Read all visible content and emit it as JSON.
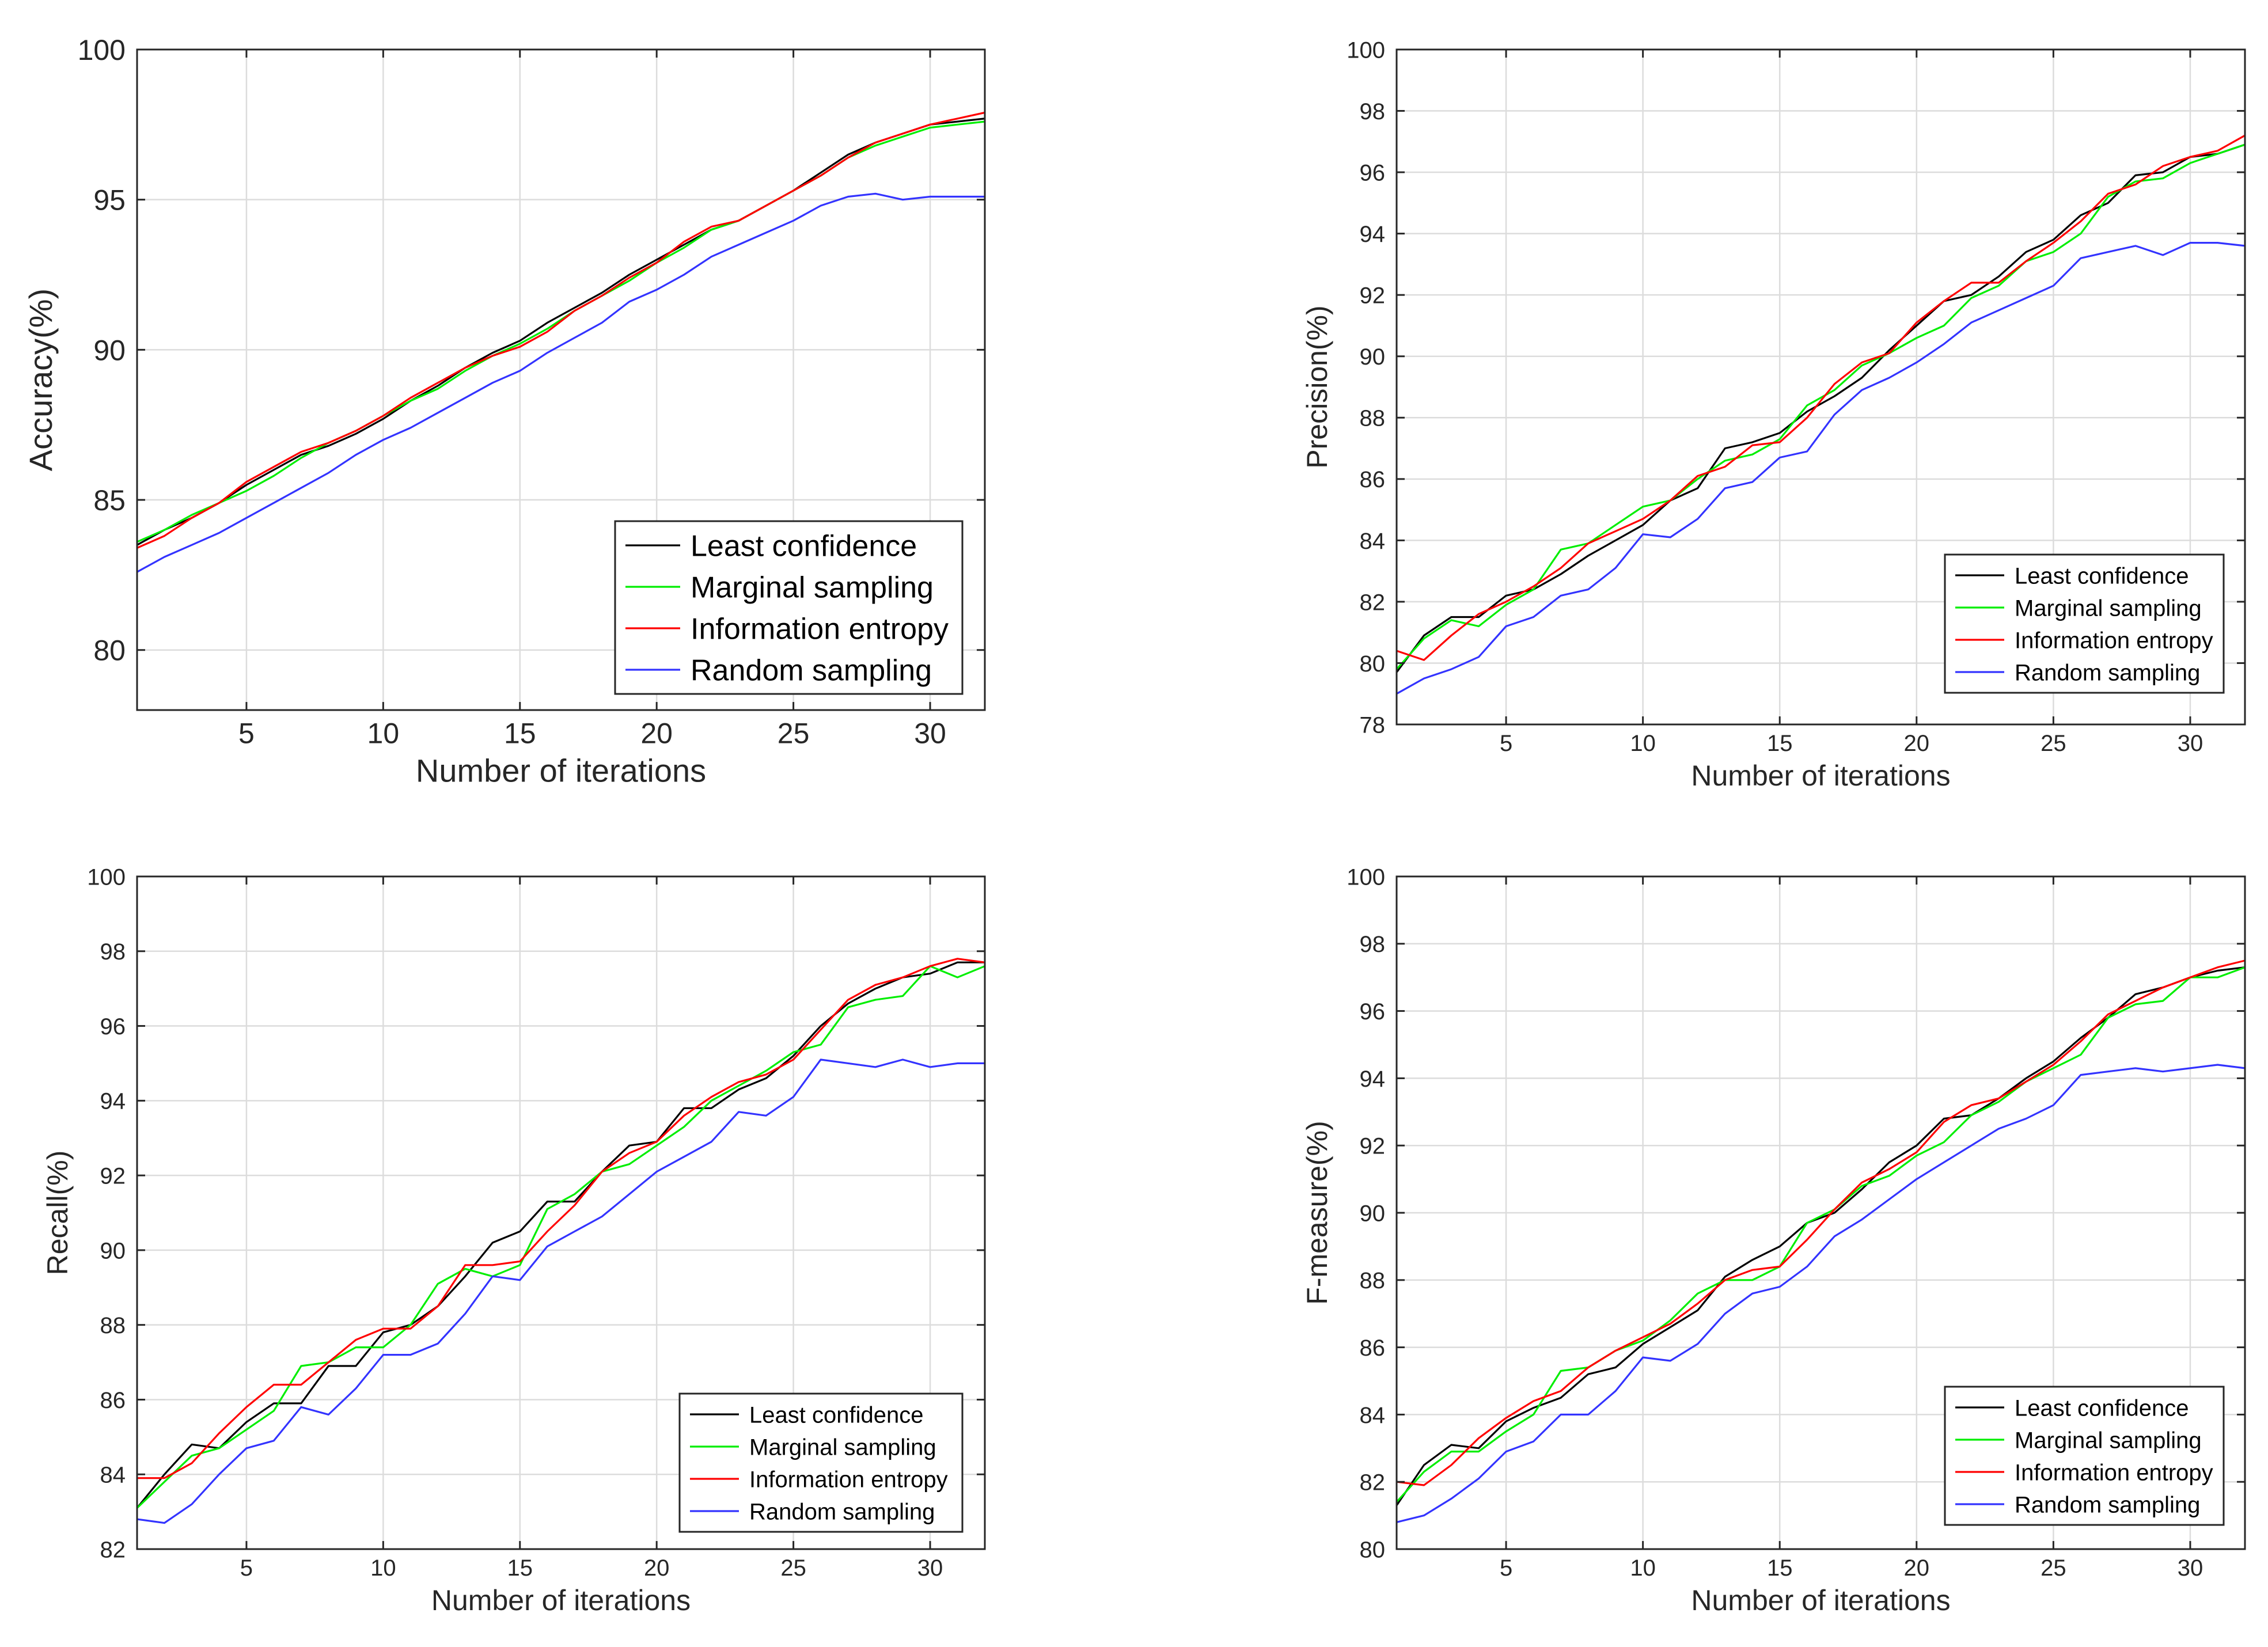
{
  "chart_data": [
    {
      "type": "line",
      "title": "",
      "xlabel": "Number of iterations",
      "ylabel": "Accuracy(%)",
      "xlim": [
        1,
        32
      ],
      "ylim": [
        78,
        100
      ],
      "xticks": [
        5,
        10,
        15,
        20,
        25,
        30
      ],
      "yticks": [
        80,
        85,
        90,
        95,
        100
      ],
      "grid": true,
      "legend_position": "bottom-right",
      "x": [
        1,
        2,
        3,
        4,
        5,
        6,
        7,
        8,
        9,
        10,
        11,
        12,
        13,
        14,
        15,
        16,
        17,
        18,
        19,
        20,
        21,
        22,
        23,
        24,
        25,
        26,
        27,
        28,
        29,
        30,
        31,
        32
      ],
      "series": [
        {
          "name": "Least confidence",
          "color": "#000000",
          "values": [
            83.5,
            84.0,
            84.4,
            84.9,
            85.5,
            86.0,
            86.5,
            86.8,
            87.2,
            87.7,
            88.3,
            88.8,
            89.4,
            89.9,
            90.3,
            90.9,
            91.4,
            91.9,
            92.5,
            93.0,
            93.5,
            94.0,
            94.3,
            94.8,
            95.3,
            95.9,
            96.5,
            96.9,
            97.2,
            97.5,
            97.6,
            97.7
          ]
        },
        {
          "name": "Marginal sampling",
          "color": "#00ee00",
          "values": [
            83.6,
            84.0,
            84.5,
            84.9,
            85.3,
            85.8,
            86.4,
            86.9,
            87.3,
            87.8,
            88.3,
            88.7,
            89.3,
            89.8,
            90.2,
            90.7,
            91.3,
            91.8,
            92.3,
            92.9,
            93.4,
            94.0,
            94.3,
            94.8,
            95.3,
            95.8,
            96.4,
            96.8,
            97.1,
            97.4,
            97.5,
            97.6
          ]
        },
        {
          "name": "Information entropy",
          "color": "#ff0000",
          "values": [
            83.4,
            83.8,
            84.4,
            84.9,
            85.6,
            86.1,
            86.6,
            86.9,
            87.3,
            87.8,
            88.4,
            88.9,
            89.4,
            89.8,
            90.1,
            90.6,
            91.3,
            91.8,
            92.4,
            92.9,
            93.6,
            94.1,
            94.3,
            94.8,
            95.3,
            95.8,
            96.4,
            96.9,
            97.2,
            97.5,
            97.7,
            97.9
          ]
        },
        {
          "name": "Random sampling",
          "color": "#3333ff",
          "values": [
            82.6,
            83.1,
            83.5,
            83.9,
            84.4,
            84.9,
            85.4,
            85.9,
            86.5,
            87.0,
            87.4,
            87.9,
            88.4,
            88.9,
            89.3,
            89.9,
            90.4,
            90.9,
            91.6,
            92.0,
            92.5,
            93.1,
            93.5,
            93.9,
            94.3,
            94.8,
            95.1,
            95.2,
            95.0,
            95.1,
            95.1,
            95.1
          ]
        }
      ]
    },
    {
      "type": "line",
      "title": "",
      "xlabel": "Number of iterations",
      "ylabel": "Precision(%)",
      "xlim": [
        1,
        32
      ],
      "ylim": [
        78,
        100
      ],
      "xticks": [
        5,
        10,
        15,
        20,
        25,
        30
      ],
      "yticks": [
        78,
        80,
        82,
        84,
        86,
        88,
        90,
        92,
        94,
        96,
        98,
        100
      ],
      "grid": true,
      "legend_position": "bottom-right",
      "x": [
        1,
        2,
        3,
        4,
        5,
        6,
        7,
        8,
        9,
        10,
        11,
        12,
        13,
        14,
        15,
        16,
        17,
        18,
        19,
        20,
        21,
        22,
        23,
        24,
        25,
        26,
        27,
        28,
        29,
        30,
        31,
        32
      ],
      "series": [
        {
          "name": "Least confidence",
          "color": "#000000",
          "values": [
            79.7,
            80.9,
            81.5,
            81.5,
            82.2,
            82.4,
            82.9,
            83.5,
            84.0,
            84.5,
            85.3,
            85.7,
            87.0,
            87.2,
            87.5,
            88.2,
            88.7,
            89.3,
            90.2,
            91.0,
            91.8,
            92.0,
            92.6,
            93.4,
            93.8,
            94.6,
            95.0,
            95.9,
            96.0,
            96.5,
            96.6,
            96.9
          ]
        },
        {
          "name": "Marginal sampling",
          "color": "#00ee00",
          "values": [
            79.8,
            80.8,
            81.4,
            81.2,
            81.9,
            82.4,
            83.7,
            83.9,
            84.5,
            85.1,
            85.3,
            86.0,
            86.6,
            86.8,
            87.3,
            88.4,
            88.9,
            89.7,
            90.1,
            90.6,
            91.0,
            91.9,
            92.3,
            93.1,
            93.4,
            94.0,
            95.2,
            95.7,
            95.8,
            96.3,
            96.6,
            96.9
          ]
        },
        {
          "name": "Information entropy",
          "color": "#ff0000",
          "values": [
            80.4,
            80.1,
            80.9,
            81.6,
            82.0,
            82.5,
            83.1,
            83.9,
            84.3,
            84.7,
            85.3,
            86.1,
            86.4,
            87.1,
            87.2,
            88.0,
            89.1,
            89.8,
            90.1,
            91.1,
            91.8,
            92.4,
            92.4,
            93.1,
            93.7,
            94.4,
            95.3,
            95.6,
            96.2,
            96.5,
            96.7,
            97.2
          ]
        },
        {
          "name": "Random sampling",
          "color": "#3333ff",
          "values": [
            79.0,
            79.5,
            79.8,
            80.2,
            81.2,
            81.5,
            82.2,
            82.4,
            83.1,
            84.2,
            84.1,
            84.7,
            85.7,
            85.9,
            86.7,
            86.9,
            88.1,
            88.9,
            89.3,
            89.8,
            90.4,
            91.1,
            91.5,
            91.9,
            92.3,
            93.2,
            93.4,
            93.6,
            93.3,
            93.7,
            93.7,
            93.6
          ]
        }
      ]
    },
    {
      "type": "line",
      "title": "",
      "xlabel": "Number of iterations",
      "ylabel": "Recall(%)",
      "xlim": [
        1,
        32
      ],
      "ylim": [
        82,
        100
      ],
      "xticks": [
        5,
        10,
        15,
        20,
        25,
        30
      ],
      "yticks": [
        82,
        84,
        86,
        88,
        90,
        92,
        94,
        96,
        98,
        100
      ],
      "grid": true,
      "legend_position": "bottom-right",
      "x": [
        1,
        2,
        3,
        4,
        5,
        6,
        7,
        8,
        9,
        10,
        11,
        12,
        13,
        14,
        15,
        16,
        17,
        18,
        19,
        20,
        21,
        22,
        23,
        24,
        25,
        26,
        27,
        28,
        29,
        30,
        31,
        32
      ],
      "series": [
        {
          "name": "Least confidence",
          "color": "#000000",
          "values": [
            83.1,
            84.0,
            84.8,
            84.7,
            85.4,
            85.9,
            85.9,
            86.9,
            86.9,
            87.8,
            88.0,
            88.5,
            89.3,
            90.2,
            90.5,
            91.3,
            91.3,
            92.1,
            92.8,
            92.9,
            93.8,
            93.8,
            94.3,
            94.6,
            95.2,
            96.0,
            96.6,
            97.0,
            97.3,
            97.4,
            97.7,
            97.7
          ]
        },
        {
          "name": "Marginal sampling",
          "color": "#00ee00",
          "values": [
            83.1,
            83.8,
            84.5,
            84.7,
            85.2,
            85.7,
            86.9,
            87.0,
            87.4,
            87.4,
            88.0,
            89.1,
            89.5,
            89.3,
            89.6,
            91.1,
            91.5,
            92.1,
            92.3,
            92.8,
            93.3,
            94.0,
            94.4,
            94.8,
            95.3,
            95.5,
            96.5,
            96.7,
            96.8,
            97.6,
            97.3,
            97.6
          ]
        },
        {
          "name": "Information entropy",
          "color": "#ff0000",
          "values": [
            83.9,
            83.9,
            84.3,
            85.1,
            85.8,
            86.4,
            86.4,
            87.0,
            87.6,
            87.9,
            87.9,
            88.5,
            89.6,
            89.6,
            89.7,
            90.5,
            91.2,
            92.1,
            92.6,
            92.9,
            93.6,
            94.1,
            94.5,
            94.7,
            95.1,
            95.9,
            96.7,
            97.1,
            97.3,
            97.6,
            97.8,
            97.7
          ]
        },
        {
          "name": "Random sampling",
          "color": "#3333ff",
          "values": [
            82.8,
            82.7,
            83.2,
            84.0,
            84.7,
            84.9,
            85.8,
            85.6,
            86.3,
            87.2,
            87.2,
            87.5,
            88.3,
            89.3,
            89.2,
            90.1,
            90.5,
            90.9,
            91.5,
            92.1,
            92.5,
            92.9,
            93.7,
            93.6,
            94.1,
            95.1,
            95.0,
            94.9,
            95.1,
            94.9,
            95.0,
            95.0
          ]
        }
      ]
    },
    {
      "type": "line",
      "title": "",
      "xlabel": "Number of iterations",
      "ylabel": "F-measure(%)",
      "xlim": [
        1,
        32
      ],
      "ylim": [
        80,
        100
      ],
      "xticks": [
        5,
        10,
        15,
        20,
        25,
        30
      ],
      "yticks": [
        80,
        82,
        84,
        86,
        88,
        90,
        92,
        94,
        96,
        98,
        100
      ],
      "grid": true,
      "legend_position": "bottom-right",
      "x": [
        1,
        2,
        3,
        4,
        5,
        6,
        7,
        8,
        9,
        10,
        11,
        12,
        13,
        14,
        15,
        16,
        17,
        18,
        19,
        20,
        21,
        22,
        23,
        24,
        25,
        26,
        27,
        28,
        29,
        30,
        31,
        32
      ],
      "series": [
        {
          "name": "Least confidence",
          "color": "#000000",
          "values": [
            81.3,
            82.5,
            83.1,
            83.0,
            83.8,
            84.2,
            84.5,
            85.2,
            85.4,
            86.1,
            86.6,
            87.1,
            88.1,
            88.6,
            89.0,
            89.7,
            90.0,
            90.7,
            91.5,
            92.0,
            92.8,
            92.9,
            93.4,
            94.0,
            94.5,
            95.2,
            95.8,
            96.5,
            96.7,
            97.0,
            97.2,
            97.3
          ]
        },
        {
          "name": "Marginal sampling",
          "color": "#00ee00",
          "values": [
            81.4,
            82.3,
            82.9,
            82.9,
            83.5,
            84.0,
            85.3,
            85.4,
            85.9,
            86.2,
            86.8,
            87.6,
            88.0,
            88.0,
            88.4,
            89.7,
            90.1,
            90.8,
            91.1,
            91.7,
            92.1,
            92.9,
            93.3,
            93.9,
            94.3,
            94.7,
            95.8,
            96.2,
            96.3,
            97.0,
            97.0,
            97.3
          ]
        },
        {
          "name": "Information entropy",
          "color": "#ff0000",
          "values": [
            82.0,
            81.9,
            82.5,
            83.3,
            83.9,
            84.4,
            84.7,
            85.4,
            85.9,
            86.3,
            86.7,
            87.3,
            88.0,
            88.3,
            88.4,
            89.2,
            90.1,
            90.9,
            91.3,
            91.8,
            92.7,
            93.2,
            93.4,
            93.9,
            94.4,
            95.1,
            95.9,
            96.3,
            96.7,
            97.0,
            97.3,
            97.5
          ]
        },
        {
          "name": "Random sampling",
          "color": "#3333ff",
          "values": [
            80.8,
            81.0,
            81.5,
            82.1,
            82.9,
            83.2,
            84.0,
            84.0,
            84.7,
            85.7,
            85.6,
            86.1,
            87.0,
            87.6,
            87.8,
            88.4,
            89.3,
            89.8,
            90.4,
            91.0,
            91.5,
            92.0,
            92.5,
            92.8,
            93.2,
            94.1,
            94.2,
            94.3,
            94.2,
            94.3,
            94.4,
            94.3
          ]
        }
      ]
    }
  ]
}
